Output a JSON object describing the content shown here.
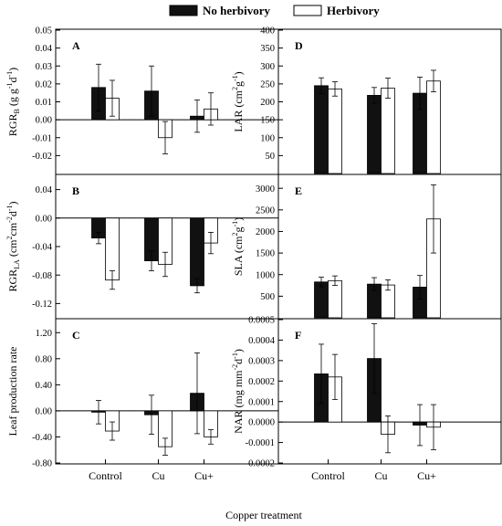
{
  "legend": {
    "series1": "No herbivory",
    "series2": "Herbivory"
  },
  "xlabel": "Copper treatment",
  "categories": [
    "Control",
    "Cu",
    "Cu+"
  ],
  "colors": {
    "series1_fill": "#111111",
    "series2_fill": "#ffffff",
    "stroke": "#000000"
  },
  "chart_data": [
    {
      "type": "bar",
      "panel": "A",
      "ylabel": "RGR_B (g g-1 d-1)",
      "ylabel_parts": {
        "main": "RGR",
        "sub": "B",
        "unit": "(g g",
        "exp1": "-1",
        "mid": "d",
        "exp2": "-1",
        "end": ")"
      },
      "ylim": [
        -0.03,
        0.05
      ],
      "yticks": [
        -0.02,
        -0.01,
        0.0,
        0.01,
        0.02,
        0.03,
        0.04,
        0.05
      ],
      "ytick_labels": [
        "-0.02",
        "-0.01",
        "0.00",
        "0.01",
        "0.02",
        "0.03",
        "0.04",
        "0.05"
      ],
      "categories": [
        "Control",
        "Cu",
        "Cu+"
      ],
      "series": [
        {
          "name": "No herbivory",
          "values": [
            0.018,
            0.016,
            0.002
          ],
          "errors": [
            0.013,
            0.014,
            0.009
          ]
        },
        {
          "name": "Herbivory",
          "values": [
            0.012,
            -0.01,
            0.006
          ],
          "errors": [
            0.01,
            0.009,
            0.009
          ]
        }
      ]
    },
    {
      "type": "bar",
      "panel": "B",
      "ylabel": "RGR_LA (cm2 cm-2 d-1)",
      "ylabel_parts": {
        "main": "RGR",
        "sub": "LA",
        "unit": "(cm",
        "exp1": "2",
        "mid": "cm",
        "exp2": "-2",
        "mid2": "d",
        "exp3": "-1",
        "end": ")"
      },
      "ylim": [
        -0.14,
        0.06
      ],
      "yticks": [
        -0.12,
        -0.08,
        -0.04,
        0.0,
        0.04
      ],
      "ytick_labels": [
        "-0.12",
        "-0.08",
        "-0.04",
        "0.00",
        "0.04"
      ],
      "categories": [
        "Control",
        "Cu",
        "Cu+"
      ],
      "series": [
        {
          "name": "No herbivory",
          "values": [
            -0.028,
            -0.06,
            -0.095
          ],
          "errors": [
            0.008,
            0.014,
            0.01
          ]
        },
        {
          "name": "Herbivory",
          "values": [
            -0.087,
            -0.065,
            -0.035
          ],
          "errors": [
            0.013,
            0.017,
            0.015
          ]
        }
      ]
    },
    {
      "type": "bar",
      "panel": "C",
      "ylabel": "Leaf production rate",
      "ylim": [
        -0.8,
        1.4
      ],
      "yticks": [
        -0.8,
        -0.4,
        0.0,
        0.4,
        0.8,
        1.2
      ],
      "ytick_labels": [
        "-0.80",
        "-0.40",
        "0.00",
        "0.40",
        "0.80",
        "1.20"
      ],
      "categories": [
        "Control",
        "Cu",
        "Cu+"
      ],
      "series": [
        {
          "name": "No herbivory",
          "values": [
            -0.02,
            -0.06,
            0.27
          ],
          "errors": [
            0.18,
            0.3,
            0.62
          ]
        },
        {
          "name": "Herbivory",
          "values": [
            -0.31,
            -0.55,
            -0.4
          ],
          "errors": [
            0.14,
            0.13,
            0.11
          ]
        }
      ]
    },
    {
      "type": "bar",
      "panel": "D",
      "ylabel": "LAR (cm2 g-1)",
      "ylabel_parts": {
        "main": "LAR",
        "unit": "(cm",
        "exp1": "2",
        "mid": "g",
        "exp2": "-1",
        "end": ")"
      },
      "ylim": [
        0,
        400
      ],
      "yticks": [
        50,
        100,
        150,
        200,
        250,
        300,
        350,
        400
      ],
      "ytick_labels": [
        "50",
        "100",
        "150",
        "200",
        "250",
        "300",
        "350",
        "400"
      ],
      "categories": [
        "Control",
        "Cu",
        "Cu+"
      ],
      "series": [
        {
          "name": "No herbivory",
          "values": [
            245,
            218,
            224
          ],
          "errors": [
            22,
            22,
            45
          ]
        },
        {
          "name": "Herbivory",
          "values": [
            236,
            238,
            258
          ],
          "errors": [
            20,
            28,
            30
          ]
        }
      ]
    },
    {
      "type": "bar",
      "panel": "E",
      "ylabel": "SLA (cm2 g-1)",
      "ylabel_parts": {
        "main": "SLA",
        "unit": "(cm",
        "exp1": "2",
        "mid": "g",
        "exp2": "-1",
        "end": ")"
      },
      "ylim": [
        0,
        3300
      ],
      "yticks": [
        500,
        1000,
        1500,
        2000,
        2500,
        3000
      ],
      "ytick_labels": [
        "500",
        "1000",
        "1500",
        "2000",
        "2500",
        "3000"
      ],
      "categories": [
        "Control",
        "Cu",
        "Cu+"
      ],
      "series": [
        {
          "name": "No herbivory",
          "values": [
            830,
            780,
            710
          ],
          "errors": [
            110,
            150,
            270
          ]
        },
        {
          "name": "Herbivory",
          "values": [
            860,
            760,
            2290
          ],
          "errors": [
            110,
            120,
            790
          ]
        }
      ]
    },
    {
      "type": "bar",
      "panel": "F",
      "ylabel": "NAR (mg mm-2 d-1)",
      "ylabel_parts": {
        "main": "NAR",
        "unit": "(mg mm",
        "exp1": "-2",
        "mid": "d",
        "exp2": "-1",
        "end": ")"
      },
      "ylim": [
        -0.0002,
        0.0005
      ],
      "yticks": [
        -0.0002,
        -0.0001,
        0.0,
        0.0001,
        0.0002,
        0.0003,
        0.0004,
        0.0005
      ],
      "ytick_labels": [
        "-0.0002",
        "-0.0001",
        "0.0000",
        "0.0001",
        "0.0002",
        "0.0003",
        "0.0004",
        "0.0005"
      ],
      "categories": [
        "Control",
        "Cu",
        "Cu+"
      ],
      "series": [
        {
          "name": "No herbivory",
          "values": [
            0.000235,
            0.00031,
            -1.5e-05
          ],
          "errors": [
            0.000145,
            0.00017,
            0.0001
          ]
        },
        {
          "name": "Herbivory",
          "values": [
            0.00022,
            -6e-05,
            -2.5e-05
          ],
          "errors": [
            0.00011,
            9e-05,
            0.00011
          ]
        }
      ]
    }
  ]
}
